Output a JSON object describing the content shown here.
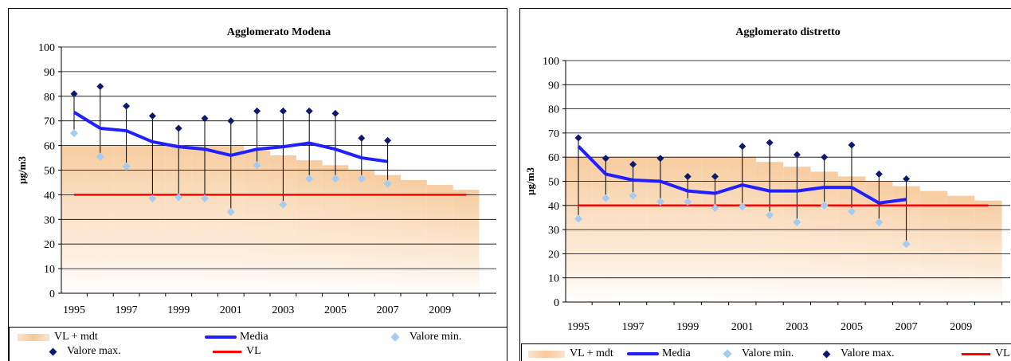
{
  "chart_data": [
    {
      "type": "line",
      "title": "Agglomerato Modena",
      "ylabel": "µg/m3",
      "xlabel": "",
      "ylim": [
        0,
        100
      ],
      "yticks": [
        0,
        10,
        20,
        30,
        40,
        50,
        60,
        70,
        80,
        90,
        100
      ],
      "xlim": [
        1995,
        2010.5
      ],
      "xticks": [
        1995,
        1997,
        1999,
        2001,
        2003,
        2005,
        2007,
        2009
      ],
      "grid": "horizontal",
      "legend": "bottom",
      "series": [
        {
          "name": "Media",
          "type": "line",
          "color": "#1f1fff",
          "x": [
            1995,
            1996,
            1997,
            1998,
            1999,
            2000,
            2001,
            2002,
            2003,
            2004,
            2005,
            2006,
            2007
          ],
          "values": [
            73.5,
            67,
            66,
            61.5,
            59.5,
            58.5,
            56,
            58.5,
            59.5,
            61,
            58.5,
            55,
            53.5
          ]
        },
        {
          "name": "Valore min.",
          "type": "scatter",
          "color": "#a6cbf0",
          "x": [
            1995,
            1996,
            1997,
            1998,
            1999,
            2000,
            2001,
            2002,
            2003,
            2004,
            2005,
            2006,
            2007
          ],
          "values": [
            65,
            55.5,
            51.5,
            38.5,
            39,
            38.5,
            33,
            52,
            36,
            46.5,
            46.5,
            46.5,
            44.5
          ]
        },
        {
          "name": "Valore max.",
          "type": "scatter",
          "color": "#0c1a6e",
          "x": [
            1995,
            1996,
            1997,
            1998,
            1999,
            2000,
            2001,
            2002,
            2003,
            2004,
            2005,
            2006,
            2007
          ],
          "values": [
            81,
            84,
            76,
            72,
            67,
            71,
            70,
            74,
            74,
            74,
            73,
            63,
            62
          ]
        },
        {
          "name": "VL",
          "type": "line",
          "color": "#ff0000",
          "x": [
            1995,
            2010
          ],
          "values": [
            40,
            40
          ]
        },
        {
          "name": "VL + mdt",
          "type": "area",
          "color": "#f6c99a",
          "x": [
            1994.5,
            1995.5,
            1996.5,
            1997.5,
            1998.5,
            1999.5,
            2000.5,
            2001.5,
            2002.5,
            2003.5,
            2004.5,
            2005.5,
            2006.5,
            2007.5,
            2008.5,
            2009.5
          ],
          "values": [
            60,
            60,
            60,
            60,
            60,
            60,
            60,
            58,
            56,
            54,
            52,
            50,
            48,
            46,
            44,
            42
          ]
        }
      ]
    },
    {
      "type": "line",
      "title": "Agglomerato distretto",
      "ylabel": "µg/m3",
      "xlabel": "",
      "ylim": [
        0,
        100
      ],
      "yticks": [
        0,
        10,
        20,
        30,
        40,
        50,
        60,
        70,
        80,
        90,
        100
      ],
      "xlim": [
        1995,
        2010.5
      ],
      "xticks": [
        1995,
        1997,
        1999,
        2001,
        2003,
        2005,
        2007,
        2009
      ],
      "grid": "horizontal",
      "legend": "bottom",
      "series": [
        {
          "name": "Media",
          "type": "line",
          "color": "#1f1fff",
          "x": [
            1995,
            1996,
            1997,
            1998,
            1999,
            2000,
            2001,
            2002,
            2003,
            2004,
            2005,
            2006,
            2007
          ],
          "values": [
            64.5,
            53,
            50.5,
            50,
            46,
            45,
            48.5,
            46,
            46,
            47.5,
            47.5,
            41,
            42.5
          ]
        },
        {
          "name": "Valore min.",
          "type": "scatter",
          "color": "#a6cbf0",
          "x": [
            1995,
            1996,
            1997,
            1998,
            1999,
            2000,
            2001,
            2002,
            2003,
            2004,
            2005,
            2006,
            2007
          ],
          "values": [
            34.5,
            43,
            44,
            41.5,
            41.5,
            39,
            39.5,
            36,
            33,
            40,
            37.5,
            33,
            24
          ]
        },
        {
          "name": "Valore max.",
          "type": "scatter",
          "color": "#0c1a6e",
          "x": [
            1995,
            1996,
            1997,
            1998,
            1999,
            2000,
            2001,
            2002,
            2003,
            2004,
            2005,
            2006,
            2007
          ],
          "values": [
            68,
            59.5,
            57,
            59.5,
            52,
            52,
            64.5,
            66,
            61,
            60,
            65,
            53,
            51
          ]
        },
        {
          "name": "VL",
          "type": "line",
          "color": "#ff0000",
          "x": [
            1995,
            2010
          ],
          "values": [
            40,
            40
          ]
        },
        {
          "name": "VL + mdt",
          "type": "area",
          "color": "#f6c99a",
          "x": [
            1994.5,
            1995.5,
            1996.5,
            1997.5,
            1998.5,
            1999.5,
            2000.5,
            2001.5,
            2002.5,
            2003.5,
            2004.5,
            2005.5,
            2006.5,
            2007.5,
            2008.5,
            2009.5
          ],
          "values": [
            60,
            60,
            60,
            60,
            60,
            60,
            60,
            58,
            56,
            54,
            52,
            50,
            48,
            46,
            44,
            42
          ]
        }
      ]
    }
  ],
  "legend_labels": {
    "band": "VL + mdt",
    "media": "Media",
    "min": "Valore min.",
    "max": "Valore max.",
    "vl": "VL"
  }
}
